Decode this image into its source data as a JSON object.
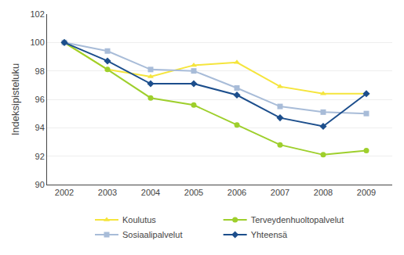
{
  "chart_data": {
    "type": "line",
    "x": [
      2002,
      2003,
      2004,
      2005,
      2006,
      2007,
      2008,
      2009
    ],
    "xlim": [
      2001.6,
      2009.6
    ],
    "xticks": [
      2002,
      2003,
      2004,
      2005,
      2006,
      2007,
      2008,
      2009
    ],
    "ylim": [
      90,
      102
    ],
    "yticks": [
      90,
      92,
      94,
      96,
      98,
      100,
      102
    ],
    "y_label": "Indeksipisteluku",
    "grid": "y",
    "legend": "bottom",
    "series": [
      {
        "name": "Koulutus",
        "color": "#f5e53c",
        "marker": "triangle-up",
        "values": [
          100.0,
          98.1,
          97.6,
          98.4,
          98.6,
          96.9,
          96.4,
          96.4
        ]
      },
      {
        "name": "Terveydenhuoltopalvelut",
        "color": "#9ecf2c",
        "marker": "circle",
        "values": [
          100.0,
          98.1,
          96.1,
          95.6,
          94.2,
          92.8,
          92.1,
          92.4
        ]
      },
      {
        "name": "Sosiaalipalvelut",
        "color": "#a8bcd8",
        "marker": "square",
        "values": [
          100.0,
          99.4,
          98.1,
          98.0,
          96.8,
          95.5,
          95.1,
          95.0
        ]
      },
      {
        "name": "Yhteensä",
        "color": "#1c4e8c",
        "marker": "diamond",
        "values": [
          100.0,
          98.7,
          97.1,
          97.1,
          96.3,
          94.7,
          94.1,
          96.4
        ]
      }
    ]
  }
}
